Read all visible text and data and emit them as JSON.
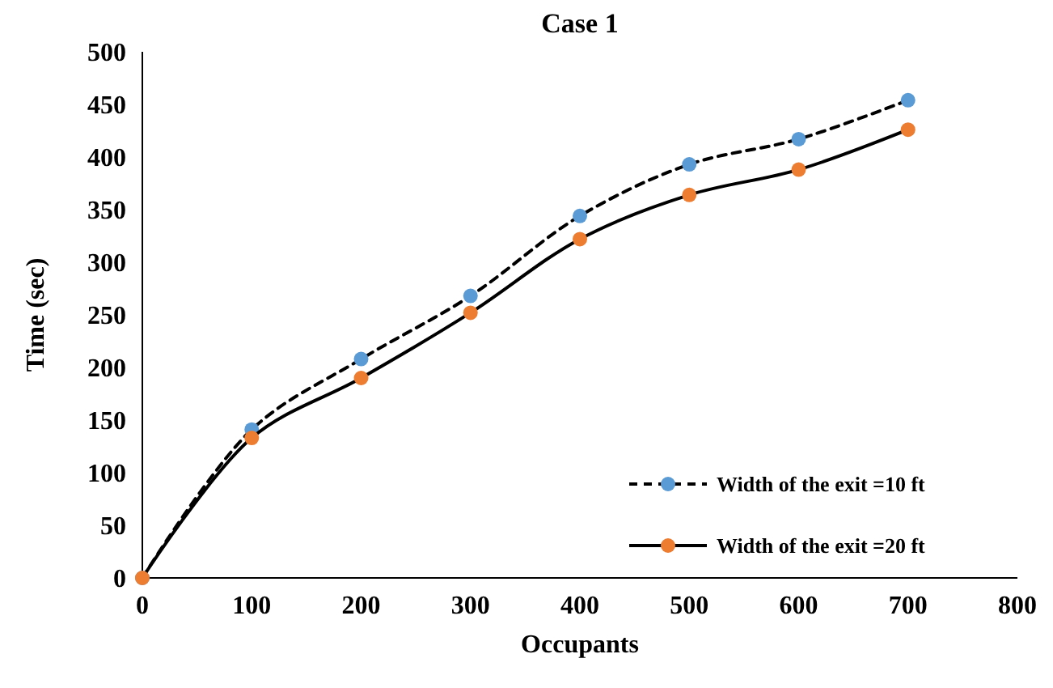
{
  "chart_data": {
    "type": "line",
    "title": "Case 1",
    "xlabel": "Occupants",
    "ylabel": "Time (sec)",
    "x": [
      0,
      100,
      200,
      300,
      400,
      500,
      600,
      700
    ],
    "series": [
      {
        "name": "Width of the exit =10 ft",
        "color": "#5b9bd5",
        "line_style": "dashed",
        "values": [
          0,
          141,
          208,
          268,
          344,
          393,
          417,
          454
        ]
      },
      {
        "name": "Width of the exit =20 ft",
        "color": "#ed7d31",
        "line_style": "solid",
        "values": [
          0,
          133,
          190,
          252,
          322,
          364,
          388,
          426
        ]
      }
    ],
    "xlim": [
      0,
      800
    ],
    "xticks": [
      0,
      100,
      200,
      300,
      400,
      500,
      600,
      700,
      800
    ],
    "ylim": [
      0,
      500
    ],
    "yticks": [
      0,
      50,
      100,
      150,
      200,
      250,
      300,
      350,
      400,
      450,
      500
    ],
    "grid": false,
    "legend": "bottom right",
    "marker": "circle"
  }
}
